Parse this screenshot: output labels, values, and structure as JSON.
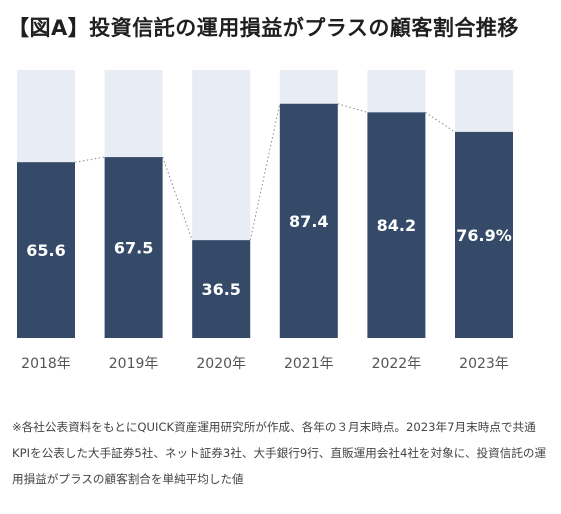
{
  "title": "【図A】投資信託の運用損益がプラスの顧客割合推移",
  "note": "※各社公表資料をもとにQUICK資産運用研究所が作成、各年の３月末時点。2023年7月末時点で共通KPIを公表した大手証券5社、ネット証券3社、大手銀行9行、直販運用会社4社を対象に、投資信託の運用損益がプラスの顧客割合を単純平均した値",
  "colors": {
    "bar": "#344a68",
    "background_bar": "#e8ecf4",
    "connector": "#8a8a8a"
  },
  "chart_data": {
    "type": "bar",
    "categories": [
      "2018年",
      "2019年",
      "2020年",
      "2021年",
      "2022年",
      "2023年"
    ],
    "values": [
      65.6,
      67.5,
      36.5,
      87.4,
      84.2,
      76.9
    ],
    "value_labels": [
      "65.6",
      "67.5",
      "36.5",
      "87.4",
      "84.2",
      "76.9%"
    ],
    "ylim": [
      0,
      100
    ],
    "stacked_remainder_to": 100,
    "connector_lines": "dotted",
    "xlabel": "",
    "ylabel": "",
    "grid": false,
    "legend": "none"
  }
}
